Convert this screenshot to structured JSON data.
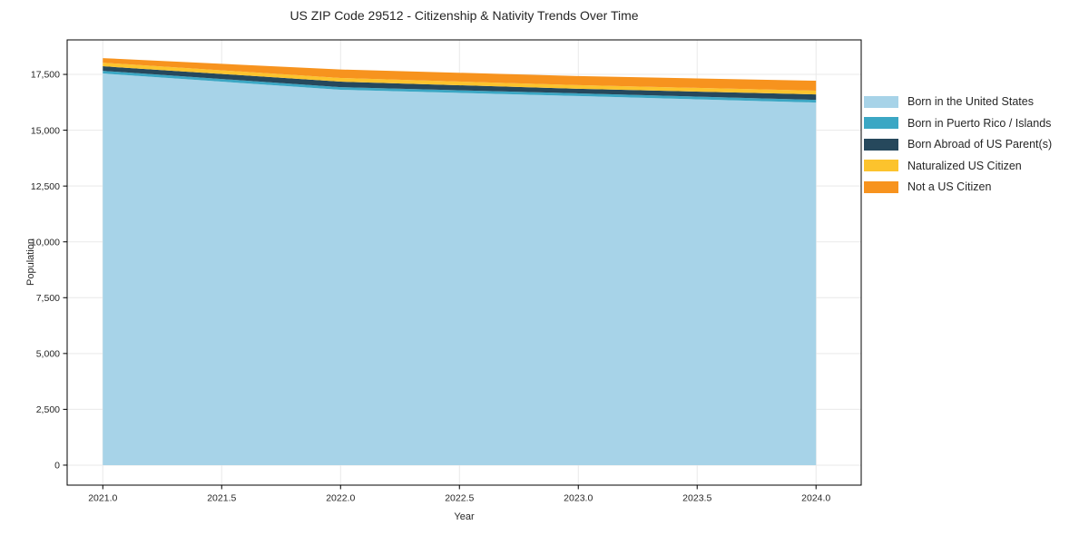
{
  "chart_data": {
    "type": "area",
    "stacked": true,
    "title": "US ZIP Code 29512 - Citizenship & Nativity Trends Over Time",
    "xlabel": "Year",
    "ylabel": "Population",
    "x": [
      2021,
      2022,
      2023,
      2024
    ],
    "series": [
      {
        "name": "Born in the United States",
        "color": "#a7d3e8",
        "values": [
          17540,
          16810,
          16530,
          16240
        ]
      },
      {
        "name": "Born in Puerto Rico / Islands",
        "color": "#3ba7c4",
        "values": [
          120,
          120,
          120,
          120
        ]
      },
      {
        "name": "Born Abroad of US Parent(s)",
        "color": "#26485c",
        "values": [
          205,
          245,
          205,
          245
        ]
      },
      {
        "name": "Naturalized US Citizen",
        "color": "#fcc32d",
        "values": [
          160,
          165,
          165,
          165
        ]
      },
      {
        "name": "Not a US Citizen",
        "color": "#f7931e",
        "values": [
          205,
          380,
          405,
          445
        ]
      }
    ],
    "xlim": [
      2020.85,
      2024.19
    ],
    "ylim": [
      -895,
      19045
    ],
    "xticks": [
      2021.0,
      2021.5,
      2022.0,
      2022.5,
      2023.0,
      2023.5,
      2024.0
    ],
    "x_tick_labels": [
      "2021.0",
      "2021.5",
      "2022.0",
      "2022.5",
      "2023.0",
      "2023.5",
      "2024.0"
    ],
    "yticks": [
      0,
      2500,
      5000,
      7500,
      10000,
      12500,
      15000,
      17500
    ],
    "y_tick_labels": [
      "0",
      "2,500",
      "5,000",
      "7,500",
      "10,000",
      "12,500",
      "15,000",
      "17,500"
    ],
    "grid": true,
    "legend_position": "right-outside",
    "colors": {
      "background": "#ffffff",
      "grid": "#e9e9e9",
      "spine": "#000000",
      "tick": "#262626",
      "text": "#262626"
    }
  }
}
